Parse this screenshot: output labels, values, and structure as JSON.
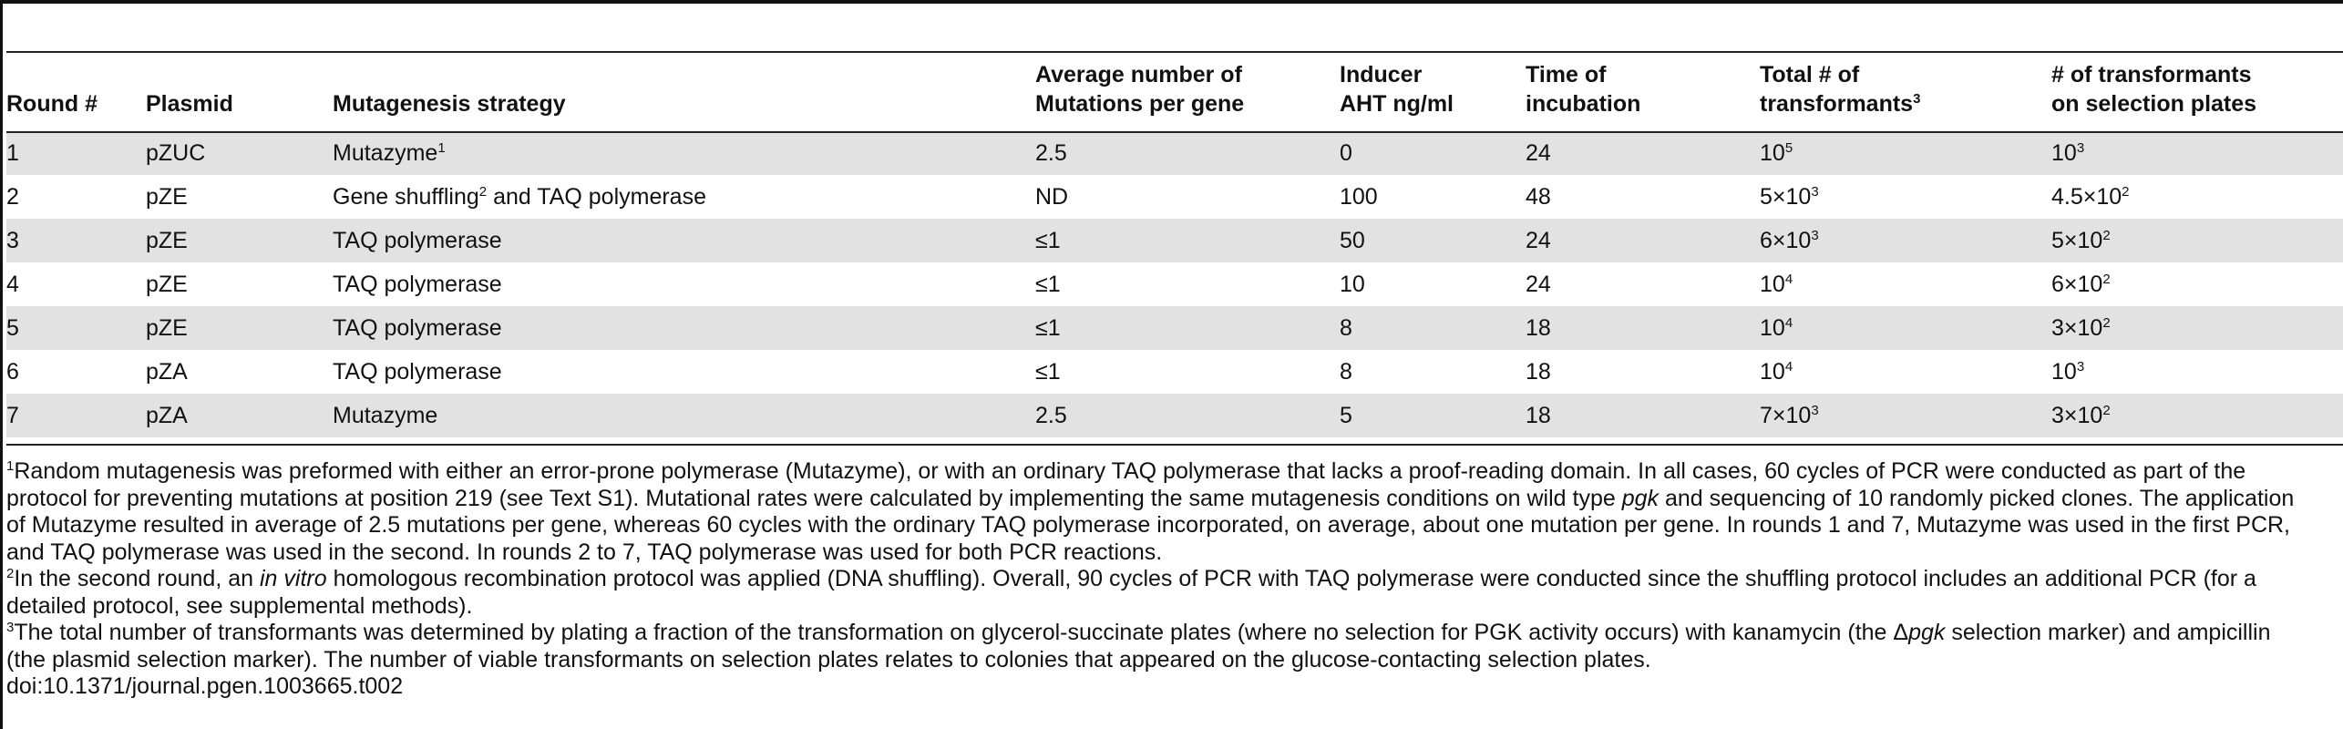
{
  "table": {
    "columns": [
      {
        "label": "Round #",
        "sup": ""
      },
      {
        "label": "Plasmid",
        "sup": ""
      },
      {
        "label": "Mutagenesis strategy",
        "sup": ""
      },
      {
        "label": "Average number of",
        "label2": "Mutations per gene",
        "sup": ""
      },
      {
        "label": "Inducer",
        "label2": "AHT ng/ml",
        "sup": ""
      },
      {
        "label": "Time of",
        "label2": "incubation",
        "sup": ""
      },
      {
        "label": "Total # of",
        "label2": "transformants",
        "sup": "3"
      },
      {
        "label": "# of transformants",
        "label2": "on selection plates",
        "sup": ""
      }
    ],
    "rows": [
      {
        "round": "1",
        "plasmid": "pZUC",
        "strategy": "Mutazyme",
        "strategy_sup": "1",
        "strategy_tail": "",
        "strategy_tail_sup": "",
        "strategy_tail2": "",
        "mutations": "2.5",
        "inducer": "0",
        "time": "24",
        "total": "10",
        "total_sup": "5",
        "selection": "10",
        "selection_sup": "3"
      },
      {
        "round": "2",
        "plasmid": "pZE",
        "strategy": "Gene shuffling",
        "strategy_sup": "2",
        "strategy_tail": " and TAQ polymerase",
        "mutations": "ND",
        "inducer": "100",
        "time": "48",
        "total": "5×10",
        "total_sup": "3",
        "selection": "4.5×10",
        "selection_sup": "2"
      },
      {
        "round": "3",
        "plasmid": "pZE",
        "strategy": "TAQ polymerase",
        "strategy_sup": "",
        "strategy_tail": "",
        "mutations": "≤1",
        "inducer": "50",
        "time": "24",
        "total": "6×10",
        "total_sup": "3",
        "selection": "5×10",
        "selection_sup": "2"
      },
      {
        "round": "4",
        "plasmid": "pZE",
        "strategy": "TAQ polymerase",
        "strategy_sup": "",
        "strategy_tail": "",
        "mutations": "≤1",
        "inducer": "10",
        "time": "24",
        "total": "10",
        "total_sup": "4",
        "selection": "6×10",
        "selection_sup": "2"
      },
      {
        "round": "5",
        "plasmid": "pZE",
        "strategy": "TAQ polymerase",
        "strategy_sup": "",
        "strategy_tail": "",
        "mutations": "≤1",
        "inducer": "8",
        "time": "18",
        "total": "10",
        "total_sup": "4",
        "selection": "3×10",
        "selection_sup": "2"
      },
      {
        "round": "6",
        "plasmid": "pZA",
        "strategy": "TAQ polymerase",
        "strategy_sup": "",
        "strategy_tail": "",
        "mutations": "≤1",
        "inducer": "8",
        "time": "18",
        "total": "10",
        "total_sup": "4",
        "selection": "10",
        "selection_sup": "3"
      },
      {
        "round": "7",
        "plasmid": "pZA",
        "strategy": "Mutazyme",
        "strategy_sup": "",
        "strategy_tail": "",
        "mutations": "2.5",
        "inducer": "5",
        "time": "18",
        "total": "7×10",
        "total_sup": "3",
        "selection": "3×10",
        "selection_sup": "2"
      }
    ]
  },
  "footnotes": {
    "n1": {
      "sup": "1",
      "l1": "Random mutagenesis was preformed with either an error-prone polymerase (Mutazyme), or with an ordinary TAQ polymerase that lacks a proof-reading domain. In all cases, 60 cycles of PCR were conducted as part of the",
      "l2": "protocol for preventing mutations at position 219 (see Text S1). Mutational rates were calculated by implementing the same mutagenesis conditions on wild type ",
      "l2_em": "pgk",
      "l2_tail": " and sequencing of 10 randomly picked clones. The application",
      "l3": "of Mutazyme resulted in average of 2.5 mutations per gene, whereas 60 cycles with the ordinary TAQ polymerase incorporated, on average, about one mutation per gene. In rounds 1 and 7, Mutazyme was used in the first PCR,",
      "l4": "and TAQ polymerase was used in the second. In rounds 2 to 7, TAQ polymerase was used for both PCR reactions."
    },
    "n2": {
      "sup": "2",
      "l1": "In the second round, an ",
      "l1_em": "in vitro",
      "l1_tail": " homologous recombination protocol was applied (DNA shuffling). Overall, 90 cycles of PCR with TAQ polymerase were conducted since the shuffling protocol includes an additional PCR (for a",
      "l2": "detailed protocol, see supplemental methods)."
    },
    "n3": {
      "sup": "3",
      "l1": "The total number of transformants was determined by plating a fraction of the transformation on glycerol-succinate plates (where no selection for PGK activity occurs) with kanamycin (the Δ",
      "l1_em": "pgk",
      "l1_tail": " selection marker) and ampicillin",
      "l2": "(the plasmid selection marker). The number of viable transformants on selection plates relates to colonies that appeared on the glucose-contacting selection plates."
    },
    "doi": "doi:10.1371/journal.pgen.1003665.t002"
  }
}
